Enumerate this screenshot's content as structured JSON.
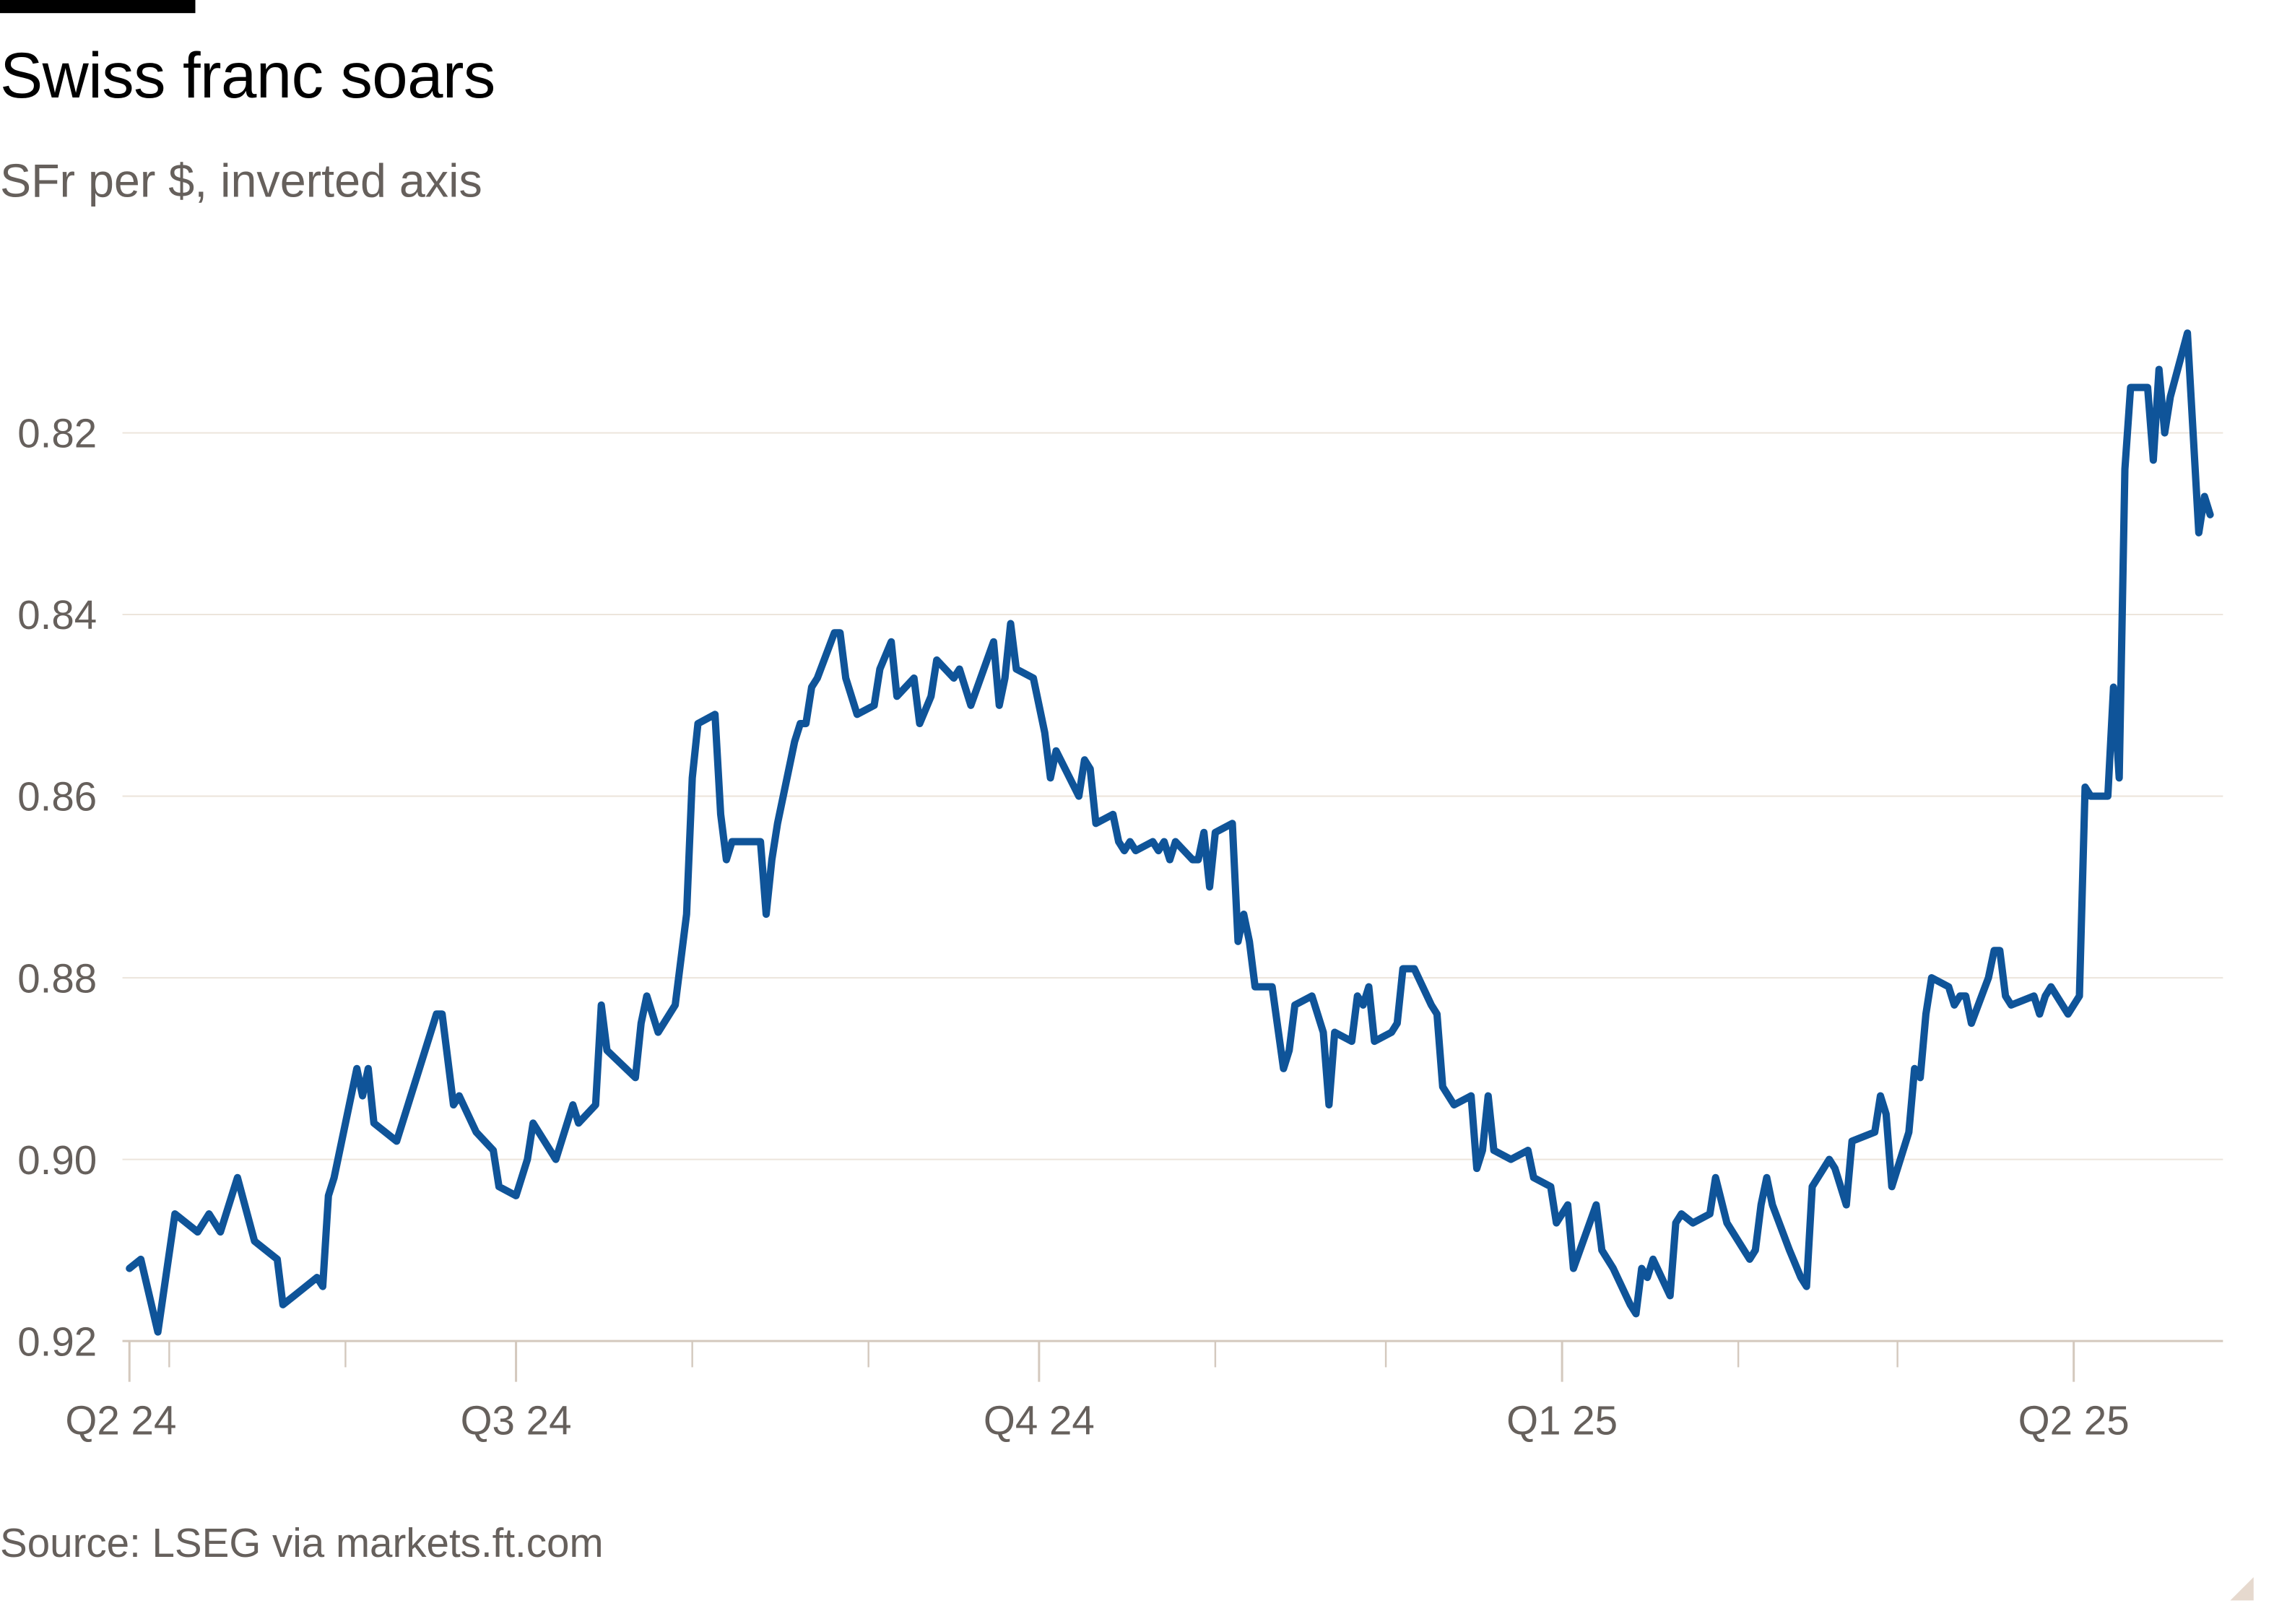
{
  "header": {
    "title": "Swiss franc soars",
    "subtitle": "SFr per $, inverted axis"
  },
  "footer": {
    "source": "Source: LSEG via markets.ft.com"
  },
  "colors": {
    "line": "#0f5499",
    "grid": "#ece5dc",
    "axis": "#d4c9be",
    "text_muted": "#66605c"
  },
  "chart_data": {
    "type": "line",
    "title": "Swiss franc soars",
    "subtitle": "SFr per $, inverted axis",
    "xlabel": "",
    "ylabel": "",
    "y_inverted": true,
    "ylim": [
      0.92,
      0.805
    ],
    "yticks": [
      "0.82",
      "0.84",
      "0.86",
      "0.88",
      "0.90",
      "0.92"
    ],
    "xticks": [
      {
        "date": "2024-04-24",
        "label": "Q2 24"
      },
      {
        "date": "2024-07-01",
        "label": "Q3 24"
      },
      {
        "date": "2024-10-01",
        "label": "Q4 24"
      },
      {
        "date": "2025-01-01",
        "label": "Q1 25"
      },
      {
        "date": "2025-04-01",
        "label": "Q2 25"
      }
    ],
    "minor_ticks": [
      "2024-05-01",
      "2024-06-01",
      "2024-08-01",
      "2024-09-01",
      "2024-11-01",
      "2024-12-01",
      "2025-02-01",
      "2025-03-01"
    ],
    "grid": true,
    "legend": "none",
    "series": [
      {
        "x": [
          "2024-04-24",
          "2024-04-26",
          "2024-04-29",
          "2024-05-02",
          "2024-05-06",
          "2024-05-08",
          "2024-05-10",
          "2024-05-13",
          "2024-05-16",
          "2024-05-20",
          "2024-05-21",
          "2024-05-23",
          "2024-05-27",
          "2024-05-28",
          "2024-05-29",
          "2024-05-30",
          "2024-06-03",
          "2024-06-04",
          "2024-06-05",
          "2024-06-06",
          "2024-06-10",
          "2024-06-12",
          "2024-06-14",
          "2024-06-17",
          "2024-06-18",
          "2024-06-20",
          "2024-06-21",
          "2024-06-24",
          "2024-06-27",
          "2024-06-28",
          "2024-07-01",
          "2024-07-03",
          "2024-07-04",
          "2024-07-08",
          "2024-07-11",
          "2024-07-12",
          "2024-07-15",
          "2024-07-16",
          "2024-07-17",
          "2024-07-22",
          "2024-07-23",
          "2024-07-24",
          "2024-07-26",
          "2024-07-29",
          "2024-07-31",
          "2024-08-01",
          "2024-08-02",
          "2024-08-05",
          "2024-08-06",
          "2024-08-07",
          "2024-08-08",
          "2024-08-12",
          "2024-08-13",
          "2024-08-14",
          "2024-08-15",
          "2024-08-16",
          "2024-08-19",
          "2024-08-20",
          "2024-08-21",
          "2024-08-22",
          "2024-08-23",
          "2024-08-26",
          "2024-08-27",
          "2024-08-28",
          "2024-08-30",
          "2024-09-02",
          "2024-09-03",
          "2024-09-05",
          "2024-09-06",
          "2024-09-09",
          "2024-09-10",
          "2024-09-12",
          "2024-09-13",
          "2024-09-16",
          "2024-09-17",
          "2024-09-19",
          "2024-09-23",
          "2024-09-24",
          "2024-09-25",
          "2024-09-26",
          "2024-09-27",
          "2024-09-30",
          "2024-10-01",
          "2024-10-02",
          "2024-10-03",
          "2024-10-04",
          "2024-10-08",
          "2024-10-09",
          "2024-10-10",
          "2024-10-11",
          "2024-10-14",
          "2024-10-15",
          "2024-10-16",
          "2024-10-17",
          "2024-10-18",
          "2024-10-21",
          "2024-10-22",
          "2024-10-23",
          "2024-10-24",
          "2024-10-25",
          "2024-10-28",
          "2024-10-29",
          "2024-10-30",
          "2024-10-31",
          "2024-11-01",
          "2024-11-04",
          "2024-11-05",
          "2024-11-06",
          "2024-11-07",
          "2024-11-08",
          "2024-11-11",
          "2024-11-13",
          "2024-11-14",
          "2024-11-15",
          "2024-11-18",
          "2024-11-20",
          "2024-11-21",
          "2024-11-22",
          "2024-11-25",
          "2024-11-26",
          "2024-11-27",
          "2024-11-28",
          "2024-11-29",
          "2024-12-02",
          "2024-12-03",
          "2024-12-04",
          "2024-12-06",
          "2024-12-09",
          "2024-12-10",
          "2024-12-11",
          "2024-12-12",
          "2024-12-13",
          "2024-12-16",
          "2024-12-17",
          "2024-12-18",
          "2024-12-19",
          "2024-12-20",
          "2024-12-23",
          "2024-12-26",
          "2024-12-27",
          "2024-12-30",
          "2024-12-31",
          "2025-01-02",
          "2025-01-03",
          "2025-01-07",
          "2025-01-08",
          "2025-01-10",
          "2025-01-13",
          "2025-01-14",
          "2025-01-15",
          "2025-01-16",
          "2025-01-17",
          "2025-01-20",
          "2025-01-21",
          "2025-01-22",
          "2025-01-24",
          "2025-01-27",
          "2025-01-28",
          "2025-01-30",
          "2025-02-03",
          "2025-02-04",
          "2025-02-05",
          "2025-02-06",
          "2025-02-07",
          "2025-02-10",
          "2025-02-12",
          "2025-02-13",
          "2025-02-14",
          "2025-02-17",
          "2025-02-18",
          "2025-02-20",
          "2025-02-21",
          "2025-02-25",
          "2025-02-26",
          "2025-02-27",
          "2025-02-28",
          "2025-03-03",
          "2025-03-04",
          "2025-03-05",
          "2025-03-06",
          "2025-03-07",
          "2025-03-10",
          "2025-03-11",
          "2025-03-12",
          "2025-03-13",
          "2025-03-14",
          "2025-03-17",
          "2025-03-18",
          "2025-03-19",
          "2025-03-20",
          "2025-03-21",
          "2025-03-25",
          "2025-03-26",
          "2025-03-27",
          "2025-03-28",
          "2025-03-31",
          "2025-04-01",
          "2025-04-02",
          "2025-04-03",
          "2025-04-04",
          "2025-04-07",
          "2025-04-08",
          "2025-04-09",
          "2025-04-10",
          "2025-04-11",
          "2025-04-14",
          "2025-04-15",
          "2025-04-16",
          "2025-04-17",
          "2025-04-18",
          "2025-04-21",
          "2025-04-22",
          "2025-04-23",
          "2025-04-24",
          "2025-04-25"
        ],
        "y": [
          0.912,
          0.911,
          0.919,
          0.906,
          0.908,
          0.906,
          0.908,
          0.902,
          0.909,
          0.911,
          0.916,
          0.915,
          0.913,
          0.914,
          0.904,
          0.902,
          0.89,
          0.893,
          0.89,
          0.896,
          0.898,
          0.894,
          0.89,
          0.884,
          0.884,
          0.894,
          0.893,
          0.897,
          0.899,
          0.903,
          0.904,
          0.9,
          0.896,
          0.9,
          0.894,
          0.896,
          0.894,
          0.883,
          0.888,
          0.891,
          0.885,
          0.882,
          0.886,
          0.883,
          0.873,
          0.858,
          0.852,
          0.851,
          0.862,
          0.867,
          0.865,
          0.865,
          0.865,
          0.873,
          0.867,
          0.863,
          0.854,
          0.852,
          0.852,
          0.848,
          0.847,
          0.842,
          0.842,
          0.847,
          0.851,
          0.85,
          0.846,
          0.843,
          0.849,
          0.847,
          0.852,
          0.849,
          0.845,
          0.847,
          0.846,
          0.85,
          0.843,
          0.85,
          0.847,
          0.841,
          0.846,
          0.847,
          0.85,
          0.853,
          0.858,
          0.855,
          0.86,
          0.856,
          0.857,
          0.863,
          0.862,
          0.865,
          0.866,
          0.865,
          0.866,
          0.865,
          0.866,
          0.865,
          0.867,
          0.865,
          0.867,
          0.867,
          0.864,
          0.87,
          0.864,
          0.863,
          0.876,
          0.873,
          0.876,
          0.881,
          0.881,
          0.89,
          0.888,
          0.883,
          0.882,
          0.886,
          0.894,
          0.886,
          0.887,
          0.882,
          0.883,
          0.881,
          0.887,
          0.886,
          0.885,
          0.879,
          0.879,
          0.883,
          0.884,
          0.892,
          0.893,
          0.894,
          0.893,
          0.901,
          0.899,
          0.893,
          0.899,
          0.9,
          0.899,
          0.902,
          0.903,
          0.907,
          0.905,
          0.912,
          0.905,
          0.91,
          0.912,
          0.916,
          0.917,
          0.912,
          0.913,
          0.911,
          0.915,
          0.907,
          0.906,
          0.907,
          0.906,
          0.902,
          0.907,
          0.911,
          0.91,
          0.905,
          0.902,
          0.905,
          0.91,
          0.913,
          0.914,
          0.903,
          0.9,
          0.901,
          0.905,
          0.898,
          0.897,
          0.893,
          0.895,
          0.903,
          0.897,
          0.89,
          0.891,
          0.884,
          0.88,
          0.881,
          0.883,
          0.882,
          0.882,
          0.885,
          0.88,
          0.877,
          0.877,
          0.882,
          0.883,
          0.882,
          0.884,
          0.882,
          0.881,
          0.884,
          0.883,
          0.882,
          0.859,
          0.86,
          0.86,
          0.848,
          0.858,
          0.824,
          0.815,
          0.815,
          0.823,
          0.813,
          0.82,
          0.816,
          0.809,
          0.82,
          0.831,
          0.827,
          0.829
        ]
      }
    ]
  }
}
